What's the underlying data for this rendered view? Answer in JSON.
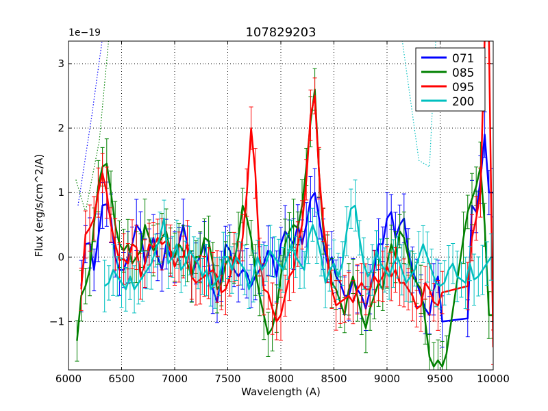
{
  "chart_data": {
    "type": "line",
    "title": "107829203",
    "xlabel": "Wavelength (A)",
    "ylabel": "Flux (erg/s/cm^2/A)",
    "offset_label": "1e−19",
    "xlim": [
      6000,
      10000
    ],
    "ylim": [
      -1.75,
      3.35
    ],
    "xticks": [
      6000,
      6500,
      7000,
      7500,
      8000,
      8500,
      9000,
      9500,
      10000
    ],
    "yticks": [
      -1,
      0,
      1,
      2,
      3
    ],
    "grid": true,
    "legend_position": "top-right",
    "series": [
      {
        "name": "071",
        "color": "#0000ff",
        "x": [
          6120,
          6160,
          6200,
          6240,
          6280,
          6320,
          6360,
          6400,
          6440,
          6480,
          6520,
          6560,
          6600,
          6640,
          6680,
          6720,
          6760,
          6800,
          6840,
          6880,
          6920,
          6960,
          7000,
          7040,
          7080,
          7120,
          7160,
          7200,
          7240,
          7280,
          7320,
          7360,
          7400,
          7440,
          7480,
          7520,
          7560,
          7600,
          7640,
          7680,
          7720,
          7760,
          7800,
          7840,
          7880,
          7920,
          7960,
          8000,
          8040,
          8080,
          8120,
          8160,
          8200,
          8240,
          8280,
          8320,
          8360,
          8400,
          8440,
          8480,
          8520,
          8560,
          8600,
          8640,
          8680,
          8720,
          8760,
          8800,
          8840,
          8880,
          8920,
          8960,
          9000,
          9040,
          9080,
          9120,
          9160,
          9200,
          9240,
          9280,
          9320,
          9360,
          9400,
          9440,
          9480,
          9520,
          9760,
          9800,
          9840,
          9880,
          9920,
          9960,
          10000
        ],
        "y": [
          -0.45,
          0.2,
          0.22,
          -0.2,
          0.3,
          0.8,
          0.82,
          0.6,
          0.0,
          -0.2,
          -0.2,
          0.0,
          0.2,
          0.5,
          0.4,
          -0.1,
          0.1,
          0.3,
          0.0,
          -0.2,
          0.2,
          0.0,
          0.0,
          0.2,
          0.5,
          0.2,
          -0.3,
          -0.1,
          0.0,
          0.2,
          -0.1,
          -0.5,
          -0.7,
          -0.3,
          0.2,
          0.1,
          -0.2,
          -0.3,
          -0.2,
          -0.25,
          -0.45,
          -0.3,
          -0.2,
          -0.1,
          0.1,
          0.0,
          -0.3,
          0.2,
          0.4,
          0.3,
          0.2,
          0.5,
          0.2,
          0.5,
          0.9,
          1.0,
          0.6,
          0.2,
          -0.1,
          0.0,
          -0.3,
          -0.4,
          -0.6,
          -0.6,
          -0.35,
          -0.5,
          -0.6,
          -0.8,
          -0.5,
          -0.2,
          0.2,
          0.2,
          0.6,
          0.7,
          0.3,
          0.5,
          0.6,
          0.1,
          -0.2,
          -0.4,
          -0.6,
          -0.8,
          -0.9,
          -0.5,
          -0.3,
          -1.0,
          -0.95,
          0.8,
          0.7,
          1.2,
          1.9,
          1.0,
          1.0
        ],
        "dotted_x": [
          6090,
          6220,
          6320
        ],
        "dotted_y": [
          0.8,
          2.2,
          3.4
        ]
      },
      {
        "name": "085",
        "color": "#008000",
        "x": [
          6080,
          6120,
          6160,
          6200,
          6240,
          6280,
          6320,
          6360,
          6400,
          6440,
          6480,
          6520,
          6560,
          6600,
          6640,
          6680,
          6720,
          6760,
          6800,
          6840,
          6880,
          6920,
          6960,
          7000,
          7040,
          7080,
          7120,
          7160,
          7200,
          7240,
          7280,
          7320,
          7360,
          7400,
          7440,
          7480,
          7520,
          7560,
          7600,
          7640,
          7680,
          7720,
          7760,
          7800,
          7840,
          7880,
          7920,
          7960,
          8000,
          8040,
          8080,
          8120,
          8160,
          8200,
          8240,
          8280,
          8320,
          8360,
          8400,
          8440,
          8480,
          8520,
          8560,
          8600,
          8640,
          8680,
          8720,
          8760,
          8800,
          8840,
          8880,
          8920,
          8960,
          9000,
          9040,
          9080,
          9120,
          9160,
          9200,
          9240,
          9280,
          9320,
          9360,
          9400,
          9440,
          9480,
          9520,
          9560,
          9720,
          9760,
          9800,
          9840,
          9880,
          9920,
          9960,
          10000
        ],
        "y": [
          -1.3,
          -0.6,
          -0.45,
          -0.2,
          0.5,
          1.1,
          1.4,
          1.45,
          1.0,
          0.5,
          0.2,
          0.1,
          0.2,
          -0.1,
          0.0,
          0.1,
          0.5,
          0.3,
          0.1,
          0.2,
          0.3,
          0.4,
          0.1,
          0.0,
          0.2,
          0.1,
          -0.1,
          -0.3,
          0.0,
          0.0,
          0.3,
          0.25,
          -0.1,
          -0.5,
          -0.4,
          -0.1,
          0.0,
          -0.1,
          0.3,
          0.8,
          0.6,
          0.3,
          -0.2,
          -0.6,
          -0.9,
          -1.2,
          -1.1,
          -0.8,
          -0.3,
          0.2,
          0.4,
          0.5,
          0.45,
          0.8,
          1.4,
          2.1,
          2.6,
          1.3,
          0.4,
          0.0,
          -0.4,
          -0.5,
          -0.7,
          -0.9,
          -0.5,
          -0.3,
          -0.6,
          -0.9,
          -1.1,
          -0.8,
          -0.6,
          -0.4,
          -0.5,
          -0.1,
          0.2,
          0.0,
          0.4,
          0.3,
          0.0,
          -0.3,
          -0.4,
          -0.5,
          -1.0,
          -1.55,
          -1.7,
          -1.6,
          -1.7,
          -1.5,
          0.3,
          0.7,
          0.9,
          1.1,
          1.4,
          0.5,
          -0.9,
          -0.9
        ],
        "dotted_x": [
          6070,
          6160,
          6290,
          6380
        ],
        "dotted_y": [
          1.2,
          0.7,
          1.8,
          3.4
        ]
      },
      {
        "name": "095",
        "color": "#ff0000",
        "x": [
          6120,
          6160,
          6200,
          6240,
          6280,
          6320,
          6360,
          6400,
          6440,
          6480,
          6520,
          6560,
          6600,
          6640,
          6680,
          6720,
          6760,
          6800,
          6840,
          6880,
          6920,
          6960,
          7000,
          7040,
          7080,
          7120,
          7160,
          7200,
          7240,
          7280,
          7320,
          7360,
          7400,
          7440,
          7480,
          7520,
          7560,
          7600,
          7640,
          7680,
          7720,
          7760,
          7800,
          7840,
          7880,
          7920,
          7960,
          8000,
          8040,
          8080,
          8120,
          8160,
          8200,
          8240,
          8280,
          8320,
          8360,
          8400,
          8440,
          8480,
          8520,
          8560,
          8600,
          8640,
          8680,
          8720,
          8760,
          8800,
          8840,
          8880,
          8920,
          8960,
          9000,
          9040,
          9080,
          9120,
          9160,
          9200,
          9240,
          9280,
          9320,
          9360,
          9400,
          9440,
          9480,
          9520,
          9760,
          9800,
          9840,
          9880,
          9920,
          9960,
          10000
        ],
        "y": [
          -0.5,
          0.35,
          0.45,
          0.6,
          1.0,
          1.3,
          1.0,
          0.5,
          0.2,
          -0.05,
          -0.03,
          -0.1,
          0.2,
          0.15,
          -0.3,
          -0.1,
          0.2,
          0.15,
          0.3,
          0.2,
          0.25,
          0.1,
          -0.15,
          0.0,
          0.0,
          0.2,
          -0.3,
          -0.4,
          -0.35,
          -0.3,
          -0.25,
          -0.2,
          -0.3,
          -0.55,
          -0.5,
          -0.3,
          0.0,
          -0.1,
          0.3,
          1.0,
          2.0,
          1.3,
          0.0,
          -0.5,
          -0.55,
          -0.8,
          -1.0,
          -0.9,
          -0.6,
          -0.3,
          -0.2,
          0.2,
          0.5,
          1.2,
          2.2,
          2.5,
          1.3,
          0.5,
          0.0,
          -0.5,
          -0.75,
          -0.7,
          -0.65,
          -0.6,
          -0.7,
          -0.5,
          -0.4,
          -0.5,
          -0.5,
          -0.3,
          -0.4,
          -0.3,
          -0.15,
          -0.3,
          -0.2,
          -0.4,
          -0.4,
          -0.5,
          -0.6,
          -0.8,
          -0.75,
          -0.4,
          -0.5,
          -0.7,
          -0.75,
          -0.55,
          -0.45,
          0.3,
          0.6,
          1.0,
          3.4,
          3.4,
          -1.4
        ],
        "dotted_x": [],
        "dotted_y": []
      },
      {
        "name": "200",
        "color": "#00bfbf",
        "x": [
          6340,
          6380,
          6420,
          6460,
          6500,
          6540,
          6580,
          6620,
          6660,
          6700,
          6740,
          6780,
          6820,
          6860,
          6900,
          6940,
          6980,
          7020,
          7060,
          7100,
          7140,
          7180,
          7220,
          7260,
          7300,
          7340,
          7380,
          7420,
          7460,
          7500,
          7540,
          7580,
          7620,
          7660,
          7700,
          7740,
          7780,
          7820,
          7860,
          7900,
          7940,
          7980,
          8020,
          8060,
          8100,
          8140,
          8180,
          8220,
          8260,
          8300,
          8340,
          8380,
          8420,
          8460,
          8500,
          8540,
          8580,
          8620,
          8660,
          8700,
          8740,
          8780,
          8820,
          8860,
          8900,
          8940,
          8980,
          9020,
          9060,
          9100,
          9140,
          9180,
          9220,
          9260,
          9300,
          9340,
          9380,
          9420,
          9460,
          9500,
          9540,
          9580,
          9620,
          9660,
          9700,
          9740,
          9780,
          9820,
          9860,
          9900,
          9940,
          9980
        ],
        "y": [
          -0.45,
          -0.4,
          -0.2,
          -0.3,
          -0.4,
          -0.5,
          -0.3,
          -0.5,
          -0.4,
          -0.3,
          -0.2,
          -0.1,
          0.1,
          0.3,
          0.6,
          -0.1,
          0.0,
          0.2,
          -0.2,
          -0.1,
          0.1,
          0.0,
          -0.1,
          -0.3,
          -0.2,
          -0.5,
          -0.4,
          -0.3,
          0.0,
          0.0,
          -0.2,
          0.0,
          -0.1,
          -0.2,
          -0.5,
          -0.3,
          0.0,
          -0.2,
          -0.1,
          0.1,
          0.0,
          -0.1,
          -0.2,
          0.0,
          0.2,
          0.0,
          -0.1,
          -0.2,
          0.3,
          0.5,
          0.3,
          0.0,
          -0.4,
          -0.2,
          -0.1,
          -0.3,
          -0.1,
          0.4,
          0.75,
          0.8,
          0.3,
          -0.1,
          -0.3,
          -0.2,
          0.1,
          -0.1,
          -0.2,
          -0.3,
          -0.1,
          0.0,
          -0.2,
          -0.4,
          -0.3,
          -0.2,
          0.0,
          0.2,
          0.0,
          -0.2,
          -0.4,
          -0.45,
          -0.4,
          -0.2,
          -0.1,
          -0.3,
          -0.35,
          -0.4,
          -0.1,
          -0.35,
          -0.3,
          -0.2,
          -0.1,
          0.0
        ],
        "dotted_x": [
          9140,
          9300,
          9400,
          9460
        ],
        "dotted_y": [
          3.4,
          1.5,
          1.4,
          3.4
        ]
      }
    ]
  }
}
